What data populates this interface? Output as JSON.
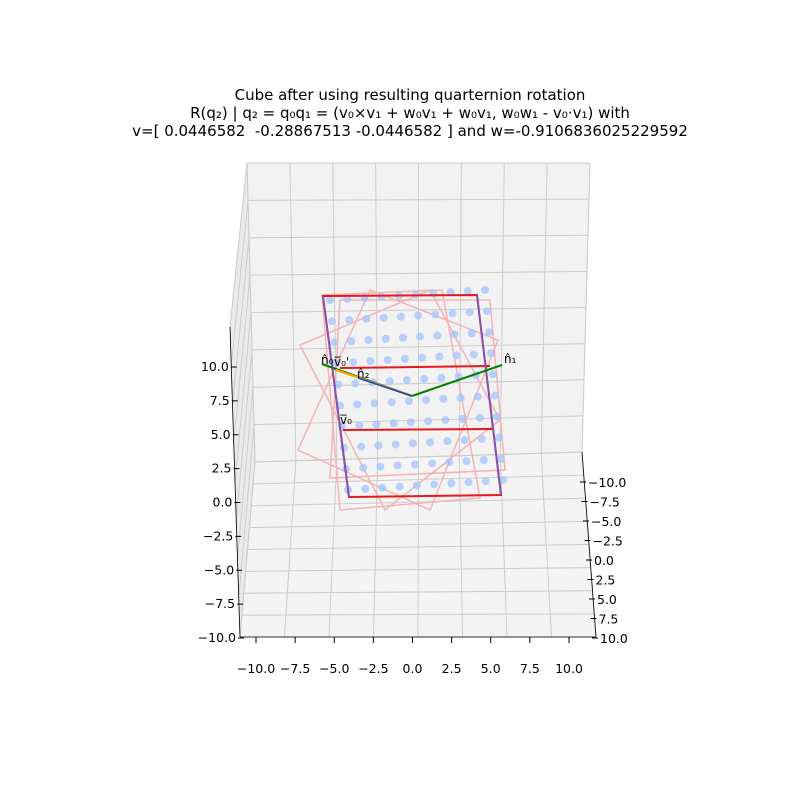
{
  "chart_data": {
    "type": "scatter",
    "projection": "3d",
    "title_lines": [
      "Cube after using resulting quarternion rotation",
      "R(q₂) | q₂ = q₀q₁ = (v₀×v₁ + w₀v₁ + w₀v₁, w₀w₁ - v₀·v₁) with",
      "v=[ 0.0446582  -0.28867513 -0.0446582 ] and w=-0.9106836025229592"
    ],
    "axis_limits": {
      "x": [
        -10,
        10
      ],
      "y": [
        -10,
        10
      ],
      "z": [
        -10,
        10
      ]
    },
    "x_ticks": [
      "−10.0",
      "−7.5",
      "−5.0",
      "−2.5",
      "0.0",
      "2.5",
      "5.0",
      "7.5",
      "10.0"
    ],
    "y_ticks": [
      "−10.0",
      "−7.5",
      "−5.0",
      "−2.5",
      "0.0",
      "2.5",
      "5.0",
      "7.5",
      "10.0"
    ],
    "z_ticks": [
      "−10.0",
      "−7.5",
      "−5.0",
      "−2.5",
      "0.0",
      "2.5",
      "5.0",
      "7.5",
      "10.0"
    ],
    "vector_labels": [
      "n̂₀",
      "v̅₀'",
      "n̂₂",
      "n̂₁",
      "v̅₀"
    ],
    "point_grid": {
      "rows": 10,
      "cols": 10
    },
    "grid": true,
    "colors": {
      "points": "#9ec2ff",
      "rotated_cube": "#e41a1c",
      "original_cube": "#f5b3b3",
      "normal_n0_n1": "#008000",
      "vector_v0": "#ffa500",
      "normal_n2": "#1f3fbf",
      "pane": "#f2f2f2",
      "gridline": "#cccccc"
    }
  }
}
